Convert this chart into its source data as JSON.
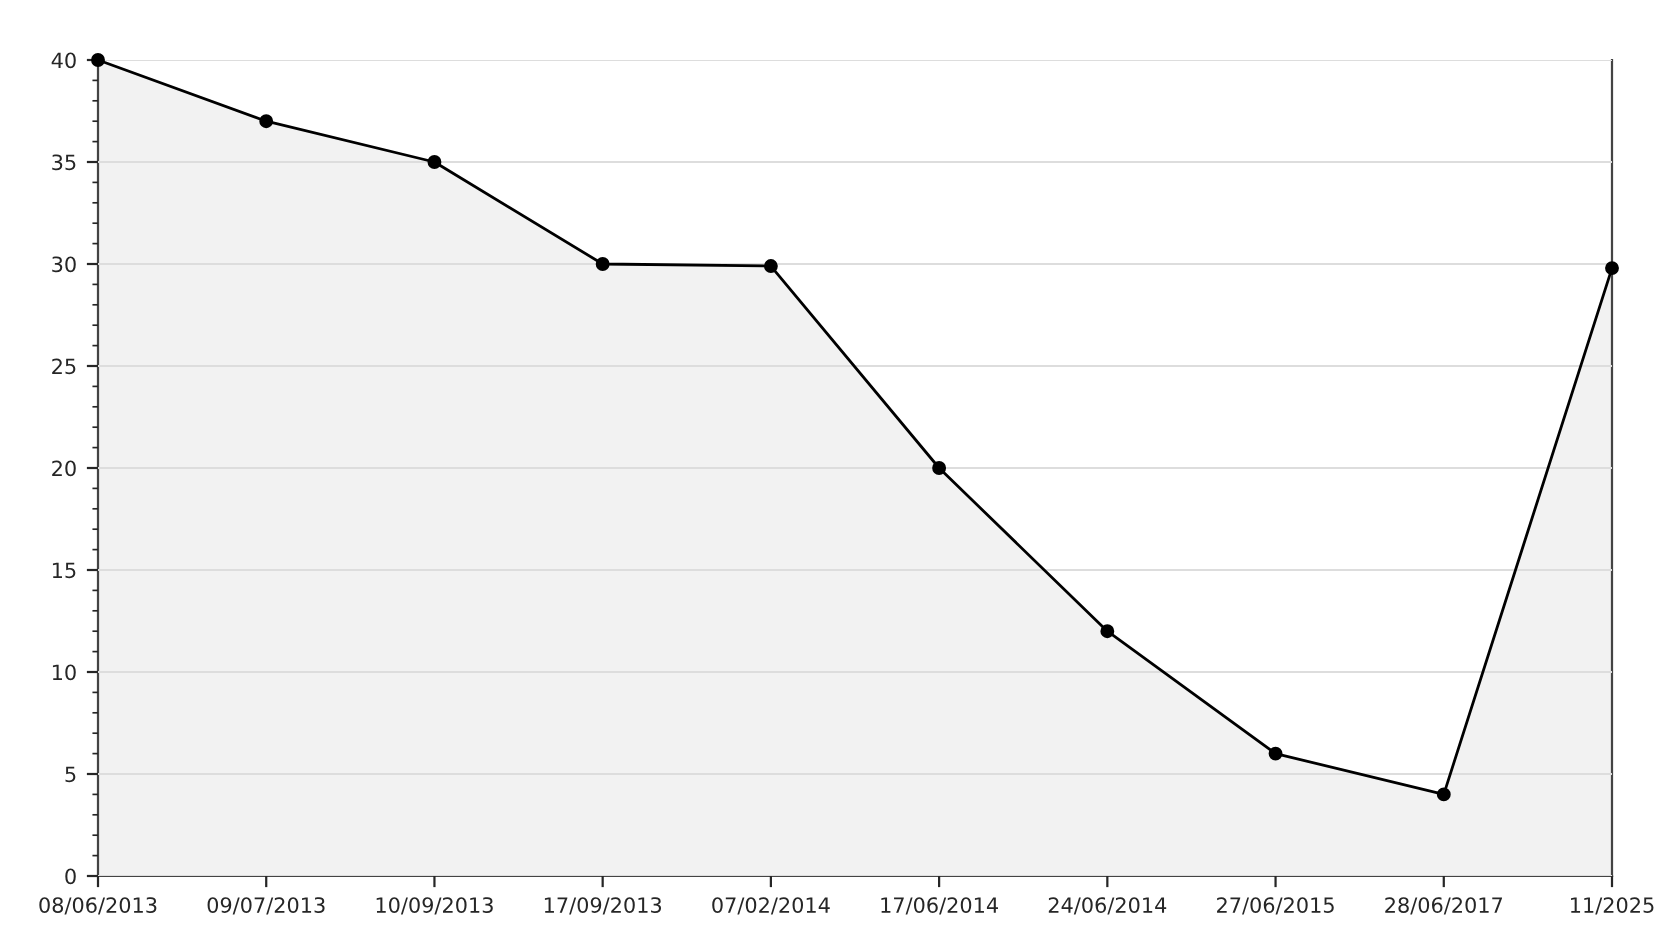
{
  "chart_data": {
    "type": "area",
    "categories": [
      "08/06/2013",
      "09/07/2013",
      "10/09/2013",
      "17/09/2013",
      "07/02/2014",
      "17/06/2014",
      "24/06/2014",
      "27/06/2015",
      "28/06/2017",
      "11/2025"
    ],
    "series": [
      {
        "color": "#000000",
        "values": [
          40,
          37,
          35,
          30,
          29.9,
          20,
          12,
          6,
          4,
          29.8
        ]
      }
    ],
    "ylim": [
      0,
      40
    ],
    "yticks": [
      0,
      5,
      10,
      15,
      20,
      25,
      30,
      35,
      40
    ],
    "grid": "y",
    "marker": "circle",
    "line_style": "solid"
  }
}
